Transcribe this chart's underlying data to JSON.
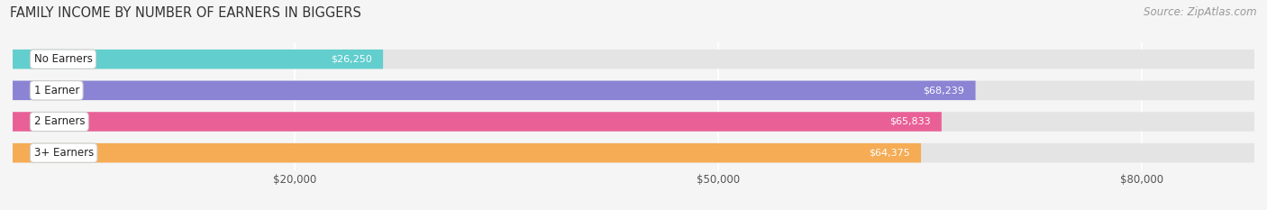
{
  "title": "FAMILY INCOME BY NUMBER OF EARNERS IN BIGGERS",
  "source": "Source: ZipAtlas.com",
  "categories": [
    "No Earners",
    "1 Earner",
    "2 Earners",
    "3+ Earners"
  ],
  "values": [
    26250,
    68239,
    65833,
    64375
  ],
  "bar_colors": [
    "#62cece",
    "#8b84d4",
    "#e96097",
    "#f5ac55"
  ],
  "bg_color": "#f5f5f5",
  "bar_bg_color": "#e4e4e4",
  "xlim": [
    0,
    88000
  ],
  "xticks": [
    20000,
    50000,
    80000
  ],
  "xtick_labels": [
    "$20,000",
    "$50,000",
    "$80,000"
  ],
  "title_fontsize": 10.5,
  "source_fontsize": 8.5,
  "bar_label_fontsize": 8.5,
  "value_label_fontsize": 8,
  "tick_fontsize": 8.5,
  "figsize": [
    14.06,
    2.33
  ],
  "dpi": 100
}
